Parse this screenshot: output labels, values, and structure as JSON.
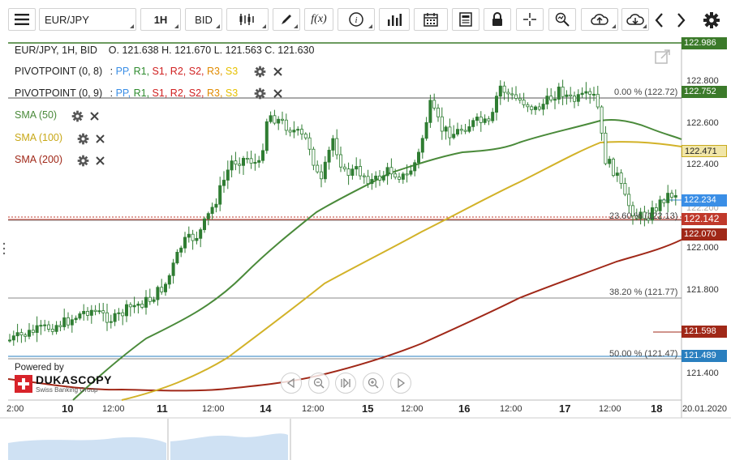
{
  "toolbar": {
    "instrument": "EUR/JPY",
    "timeframe": "1H",
    "side": "BID",
    "function_label": "f(x)",
    "info_label": "i"
  },
  "legend": {
    "ohlc": "EUR/JPY, 1H, BID    O. 121.638 H. 121.670 L. 121.563 C. 121.630",
    "pivot1": {
      "name": "PIVOTPOINT (0, 8)",
      "sep": ":",
      "pp": "PP,",
      "r1": "R1,",
      "s1": "S1,",
      "r2": "R2,",
      "s2": "S2,",
      "r3": "R3,",
      "s3": "S3"
    },
    "pivot2": {
      "name": "PIVOTPOINT (0, 9)",
      "sep": ":",
      "pp": "PP,",
      "r1": "R1,",
      "s1": "S1,",
      "r2": "R2,",
      "s2": "S2,",
      "r3": "R3,",
      "s3": "S3"
    },
    "sma50": "SMA (50)",
    "sma100": "SMA (100)",
    "sma200": "SMA (200)"
  },
  "colors": {
    "pp": "#3a8ee6",
    "r1": "#2e8b2e",
    "s1": "#d02020",
    "r2": "#d02020",
    "s2": "#e08a00",
    "r3": "#e6c000",
    "s3": "#e6c000",
    "sma50": "#4a8a3a",
    "sma100": "#d2b228",
    "sma200": "#a02818",
    "candle": "#2f7d32"
  },
  "price_axis": {
    "labels": [
      "122.800",
      "122.600",
      "122.400",
      "122.200",
      "122.000",
      "121.800",
      "121.400"
    ],
    "tags": [
      {
        "value": "122.986",
        "color": "#3b7a2a"
      },
      {
        "value": "122.752",
        "color": "#3b7a2a"
      },
      {
        "value": "122.471",
        "color": "#c8aa1e"
      },
      {
        "value": "122.234",
        "color": "#3a8ee6"
      },
      {
        "value": "122.142",
        "color": "#c0392b"
      },
      {
        "value": "122.070",
        "color": "#a02818"
      },
      {
        "value": "121.598",
        "color": "#a02818"
      },
      {
        "value": "121.489",
        "color": "#2a7fbf"
      }
    ]
  },
  "fib": {
    "f0": "0.00 % (122.72)",
    "f236": "23.60 % (122.13)",
    "f382": "38.20 % (121.77)",
    "f50": "50.00 % (121.47)"
  },
  "time_axis": {
    "start": "2:00",
    "days": [
      "10",
      "11",
      "14",
      "15",
      "16",
      "17",
      "18"
    ],
    "noon": "12:00",
    "end": "20.01.2020"
  },
  "branding": {
    "powered": "Powered by",
    "name": "DUKASCOPY",
    "sub": "Swiss Banking Group"
  }
}
